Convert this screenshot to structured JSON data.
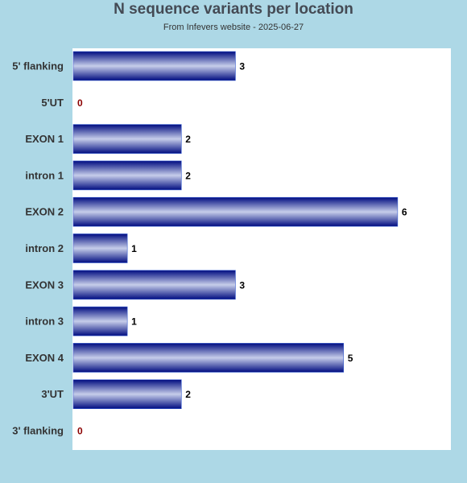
{
  "chart_data": {
    "type": "bar",
    "orientation": "horizontal",
    "title": "N sequence variants per location",
    "subtitle": "From Infevers website - 2025-06-27",
    "categories": [
      "5' flanking",
      "5'UT",
      "EXON 1",
      "intron 1",
      "EXON 2",
      "intron 2",
      "EXON 3",
      "intron 3",
      "EXON 4",
      "3'UT",
      "3' flanking"
    ],
    "values": [
      3,
      0,
      2,
      2,
      6,
      1,
      3,
      1,
      5,
      2,
      0
    ],
    "xlim": [
      0,
      7
    ],
    "grid": false,
    "legend": "none",
    "colors": {
      "background": "#add8e6",
      "plot_background": "#ffffff",
      "bar_dark": "#000c80",
      "bar_light": "#c6cdea",
      "value_label": "#000000",
      "zero_label": "#8b0000"
    }
  }
}
